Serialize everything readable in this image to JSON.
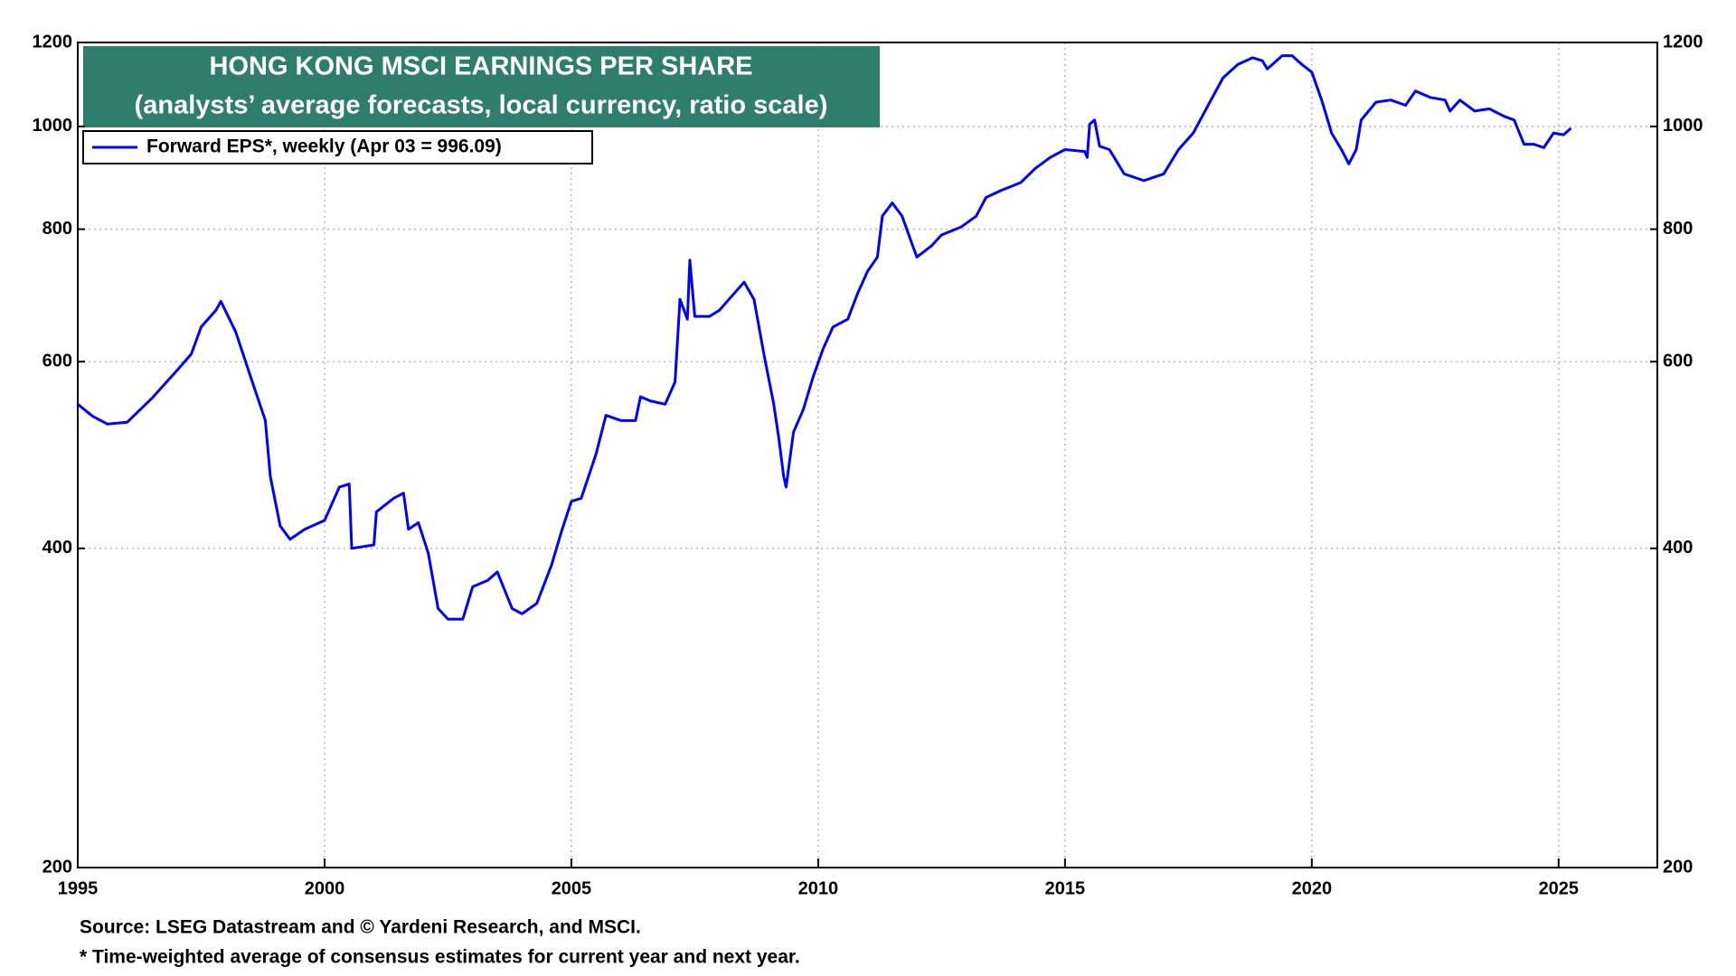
{
  "chart_data": {
    "type": "line",
    "title": "HONG KONG MSCI EARNINGS PER SHARE",
    "subtitle": "(analysts’ average forecasts, local currency, ratio scale)",
    "source": "Source: LSEG Datastream and © Yardeni Research, and MSCI.",
    "footnote": "* Time-weighted average of consensus estimates for current year and next year.",
    "log_scale": true,
    "grid": true,
    "legend": "top-left",
    "xlim": [
      1995,
      2027
    ],
    "xticks": [
      1995,
      2000,
      2005,
      2010,
      2015,
      2020,
      2025
    ],
    "ylim": [
      200,
      1200
    ],
    "yticks": [
      200,
      400,
      600,
      800,
      1000,
      1200
    ],
    "x": [
      1995.0,
      1995.3,
      1995.6,
      1996.0,
      1996.5,
      1997.0,
      1997.3,
      1997.5,
      1997.8,
      1997.9,
      1998.2,
      1998.5,
      1998.8,
      1998.9,
      1999.1,
      1999.3,
      1999.6,
      2000.0,
      2000.3,
      2000.5,
      2000.55,
      2001.0,
      2001.05,
      2001.4,
      2001.6,
      2001.7,
      2001.9,
      2002.1,
      2002.3,
      2002.5,
      2002.8,
      2003.0,
      2003.3,
      2003.5,
      2003.8,
      2004.0,
      2004.3,
      2004.6,
      2004.8,
      2005.0,
      2005.2,
      2005.5,
      2005.7,
      2006.0,
      2006.3,
      2006.4,
      2006.6,
      2006.9,
      2007.1,
      2007.2,
      2007.35,
      2007.4,
      2007.5,
      2007.8,
      2008.0,
      2008.3,
      2008.5,
      2008.7,
      2008.9,
      2009.1,
      2009.2,
      2009.3,
      2009.35,
      2009.5,
      2009.7,
      2009.9,
      2010.1,
      2010.3,
      2010.6,
      2010.8,
      2011.0,
      2011.2,
      2011.3,
      2011.5,
      2011.7,
      2011.9,
      2012.0,
      2012.3,
      2012.5,
      2012.9,
      2013.2,
      2013.4,
      2013.7,
      2014.1,
      2014.4,
      2014.7,
      2015.0,
      2015.4,
      2015.45,
      2015.5,
      2015.6,
      2015.7,
      2015.9,
      2016.2,
      2016.6,
      2017.0,
      2017.3,
      2017.6,
      2017.9,
      2018.2,
      2018.5,
      2018.8,
      2019.0,
      2019.1,
      2019.4,
      2019.6,
      2019.8,
      2020.0,
      2020.2,
      2020.4,
      2020.6,
      2020.75,
      2020.9,
      2021.0,
      2021.3,
      2021.6,
      2021.9,
      2022.1,
      2022.4,
      2022.7,
      2022.8,
      2023.0,
      2023.3,
      2023.6,
      2023.9,
      2024.1,
      2024.3,
      2024.5,
      2024.7,
      2024.9,
      2025.1,
      2025.25
    ],
    "series": [
      {
        "name": "Forward EPS*, weekly (Apr 03 = 996.09)",
        "color": "#0000ff",
        "values": [
          547,
          533,
          524,
          526,
          554,
          588,
          610,
          647,
          671,
          684,
          640,
          581,
          528,
          468,
          420,
          408,
          417,
          425,
          457,
          460,
          400,
          403,
          433,
          446,
          451,
          417,
          423,
          396,
          351,
          343,
          343,
          368,
          373,
          380,
          351,
          347,
          355,
          386,
          415,
          443,
          446,
          491,
          534,
          528,
          528,
          556,
          551,
          547,
          574,
          687,
          658,
          748,
          662,
          662,
          671,
          696,
          713,
          687,
          610,
          547,
          509,
          468,
          457,
          515,
          541,
          581,
          617,
          647,
          658,
          696,
          730,
          753,
          823,
          847,
          823,
          775,
          753,
          772,
          790,
          804,
          823,
          857,
          870,
          885,
          913,
          935,
          951,
          947,
          935,
          1005,
          1014,
          958,
          951,
          902,
          889,
          902,
          951,
          986,
          1047,
          1111,
          1144,
          1161,
          1153,
          1133,
          1166,
          1166,
          1144,
          1125,
          1059,
          986,
          951,
          922,
          951,
          1014,
          1054,
          1059,
          1047,
          1080,
          1065,
          1059,
          1034,
          1059,
          1034,
          1039,
          1022,
          1014,
          962,
          962,
          955,
          986,
          982,
          996.09
        ]
      }
    ]
  }
}
